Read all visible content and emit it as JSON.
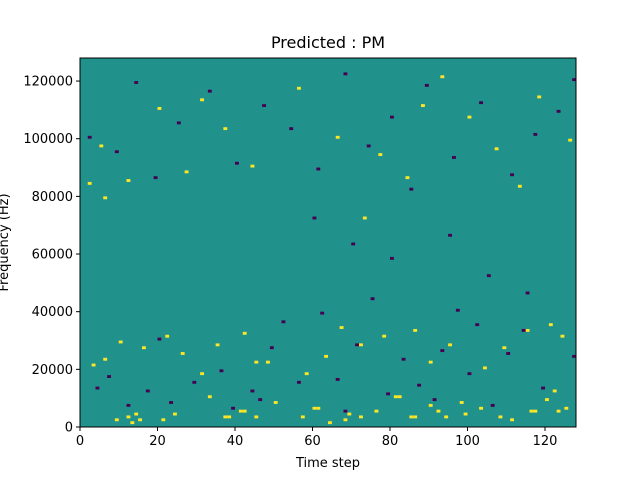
{
  "chart_data": {
    "type": "heatmap",
    "title": "Predicted : PM",
    "xlabel": "Time step",
    "ylabel": "Frequency (Hz)",
    "xlim": [
      0,
      128
    ],
    "ylim": [
      0,
      128000
    ],
    "x_ticks": [
      0,
      20,
      40,
      60,
      80,
      100,
      120
    ],
    "y_ticks": [
      0,
      20000,
      40000,
      60000,
      80000,
      100000,
      120000
    ],
    "grid": false,
    "legend": "none",
    "colors": {
      "background": "#21918c",
      "high": "#fde725",
      "low": "#440154"
    },
    "value_levels": [
      "low",
      "background",
      "high"
    ],
    "cells": [
      [
        14,
        4,
        "high"
      ],
      [
        15,
        2,
        "high"
      ],
      [
        9,
        2,
        "high"
      ],
      [
        12,
        3,
        "high"
      ],
      [
        13,
        1,
        "high"
      ],
      [
        21,
        2,
        "high"
      ],
      [
        24,
        4,
        "high"
      ],
      [
        33,
        10,
        "high"
      ],
      [
        37,
        3,
        "high"
      ],
      [
        38,
        3,
        "high"
      ],
      [
        41,
        5,
        "high"
      ],
      [
        42,
        5,
        "high"
      ],
      [
        45,
        3,
        "high"
      ],
      [
        50,
        8,
        "high"
      ],
      [
        57,
        3,
        "high"
      ],
      [
        60,
        6,
        "high"
      ],
      [
        61,
        6,
        "high"
      ],
      [
        64,
        1,
        "high"
      ],
      [
        68,
        2,
        "high"
      ],
      [
        69,
        4,
        "high"
      ],
      [
        72,
        3,
        "high"
      ],
      [
        76,
        5,
        "high"
      ],
      [
        81,
        10,
        "high"
      ],
      [
        82,
        10,
        "high"
      ],
      [
        85,
        3,
        "high"
      ],
      [
        86,
        3,
        "high"
      ],
      [
        90,
        7,
        "high"
      ],
      [
        92,
        5,
        "high"
      ],
      [
        94,
        3,
        "high"
      ],
      [
        98,
        8,
        "high"
      ],
      [
        99,
        4,
        "high"
      ],
      [
        103,
        6,
        "high"
      ],
      [
        108,
        3,
        "high"
      ],
      [
        111,
        2,
        "high"
      ],
      [
        116,
        5,
        "high"
      ],
      [
        117,
        5,
        "high"
      ],
      [
        120,
        9,
        "high"
      ],
      [
        122,
        12,
        "high"
      ],
      [
        123,
        5,
        "high"
      ],
      [
        125,
        6,
        "high"
      ],
      [
        3,
        21,
        "high"
      ],
      [
        6,
        23,
        "high"
      ],
      [
        10,
        29,
        "high"
      ],
      [
        16,
        27,
        "high"
      ],
      [
        22,
        31,
        "high"
      ],
      [
        26,
        25,
        "high"
      ],
      [
        31,
        18,
        "high"
      ],
      [
        35,
        28,
        "high"
      ],
      [
        42,
        32,
        "high"
      ],
      [
        45,
        22,
        "high"
      ],
      [
        48,
        22,
        "high"
      ],
      [
        58,
        18,
        "high"
      ],
      [
        63,
        24,
        "high"
      ],
      [
        67,
        34,
        "high"
      ],
      [
        72,
        28,
        "high"
      ],
      [
        78,
        31,
        "high"
      ],
      [
        86,
        33,
        "high"
      ],
      [
        90,
        22,
        "high"
      ],
      [
        95,
        28,
        "high"
      ],
      [
        104,
        20,
        "high"
      ],
      [
        109,
        27,
        "high"
      ],
      [
        115,
        33,
        "high"
      ],
      [
        121,
        35,
        "high"
      ],
      [
        124,
        31,
        "high"
      ],
      [
        6,
        79,
        "high"
      ],
      [
        5,
        97,
        "high"
      ],
      [
        2,
        84,
        "high"
      ],
      [
        12,
        85,
        "high"
      ],
      [
        20,
        110,
        "high"
      ],
      [
        27,
        88,
        "high"
      ],
      [
        31,
        113,
        "high"
      ],
      [
        37,
        103,
        "high"
      ],
      [
        44,
        90,
        "high"
      ],
      [
        56,
        117,
        "high"
      ],
      [
        66,
        100,
        "high"
      ],
      [
        73,
        72,
        "high"
      ],
      [
        77,
        94,
        "high"
      ],
      [
        84,
        86,
        "high"
      ],
      [
        88,
        111,
        "high"
      ],
      [
        93,
        121,
        "high"
      ],
      [
        100,
        107,
        "high"
      ],
      [
        107,
        96,
        "high"
      ],
      [
        113,
        83,
        "high"
      ],
      [
        118,
        114,
        "high"
      ],
      [
        126,
        99,
        "high"
      ],
      [
        4,
        13,
        "low"
      ],
      [
        7,
        17,
        "low"
      ],
      [
        12,
        7,
        "low"
      ],
      [
        17,
        12,
        "low"
      ],
      [
        20,
        30,
        "low"
      ],
      [
        23,
        8,
        "low"
      ],
      [
        29,
        15,
        "low"
      ],
      [
        36,
        19,
        "low"
      ],
      [
        39,
        6,
        "low"
      ],
      [
        44,
        12,
        "low"
      ],
      [
        46,
        9,
        "low"
      ],
      [
        49,
        27,
        "low"
      ],
      [
        52,
        36,
        "low"
      ],
      [
        56,
        15,
        "low"
      ],
      [
        62,
        39,
        "low"
      ],
      [
        66,
        16,
        "low"
      ],
      [
        68,
        5,
        "low"
      ],
      [
        71,
        28,
        "low"
      ],
      [
        75,
        44,
        "low"
      ],
      [
        79,
        11,
        "low"
      ],
      [
        83,
        23,
        "low"
      ],
      [
        87,
        14,
        "low"
      ],
      [
        91,
        9,
        "low"
      ],
      [
        93,
        26,
        "low"
      ],
      [
        97,
        40,
        "low"
      ],
      [
        100,
        18,
        "low"
      ],
      [
        102,
        35,
        "low"
      ],
      [
        106,
        7,
        "low"
      ],
      [
        110,
        25,
        "low"
      ],
      [
        114,
        33,
        "low"
      ],
      [
        119,
        13,
        "low"
      ],
      [
        127,
        24,
        "low"
      ],
      [
        2,
        100,
        "low"
      ],
      [
        9,
        95,
        "low"
      ],
      [
        14,
        119,
        "low"
      ],
      [
        19,
        86,
        "low"
      ],
      [
        25,
        105,
        "low"
      ],
      [
        33,
        116,
        "low"
      ],
      [
        40,
        91,
        "low"
      ],
      [
        47,
        111,
        "low"
      ],
      [
        54,
        103,
        "low"
      ],
      [
        61,
        89,
        "low"
      ],
      [
        68,
        122,
        "low"
      ],
      [
        74,
        97,
        "low"
      ],
      [
        80,
        107,
        "low"
      ],
      [
        85,
        82,
        "low"
      ],
      [
        89,
        118,
        "low"
      ],
      [
        96,
        93,
        "low"
      ],
      [
        103,
        112,
        "low"
      ],
      [
        111,
        87,
        "low"
      ],
      [
        117,
        101,
        "low"
      ],
      [
        123,
        109,
        "low"
      ],
      [
        127,
        120,
        "low"
      ],
      [
        60,
        72,
        "low"
      ],
      [
        70,
        63,
        "low"
      ],
      [
        80,
        58,
        "low"
      ],
      [
        95,
        66,
        "low"
      ],
      [
        105,
        52,
        "low"
      ],
      [
        115,
        46,
        "low"
      ]
    ]
  }
}
